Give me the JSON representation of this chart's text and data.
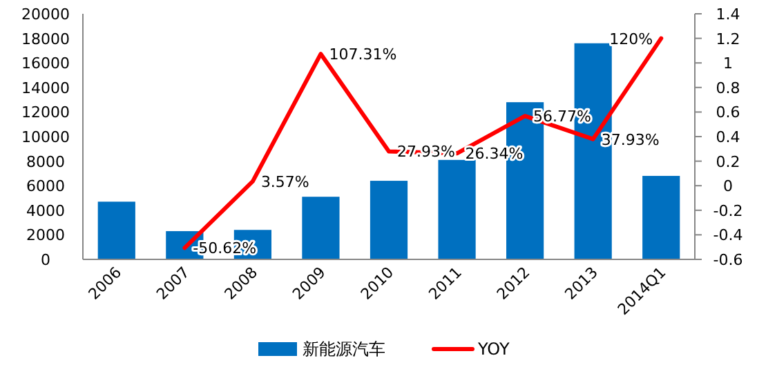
{
  "chart_data": {
    "type": "bar",
    "categories": [
      "2006",
      "2007",
      "2008",
      "2009",
      "2010",
      "2011",
      "2012",
      "2013",
      "2014Q1"
    ],
    "series": [
      {
        "name": "新能源汽车",
        "color": "#0070c0",
        "values": [
          4700,
          2300,
          2400,
          5100,
          6400,
          8100,
          12800,
          17600,
          6800
        ]
      },
      {
        "name": "YOY",
        "type": "line",
        "axis": "y2",
        "color": "#ff0000",
        "values": [
          null,
          -0.5062,
          0.0357,
          1.0731,
          0.2793,
          0.2634,
          0.5677,
          0.3793,
          1.2
        ],
        "value_labels": [
          null,
          "-50.62%",
          "3.57%",
          "107.31%",
          "27.93%",
          "26.34%",
          "56.77%",
          "37.93%",
          "120%"
        ]
      }
    ],
    "ylim": [
      0,
      20000
    ],
    "yticks": [
      0,
      2000,
      4000,
      6000,
      8000,
      10000,
      12000,
      14000,
      16000,
      18000,
      20000
    ],
    "y2lim": [
      -0.6,
      1.4
    ],
    "y2ticks": [
      -0.6,
      -0.4,
      -0.2,
      0,
      0.2,
      0.4,
      0.6,
      0.8,
      1,
      1.2,
      1.4
    ],
    "legend": "bottom",
    "marker": "none",
    "grid": false
  }
}
